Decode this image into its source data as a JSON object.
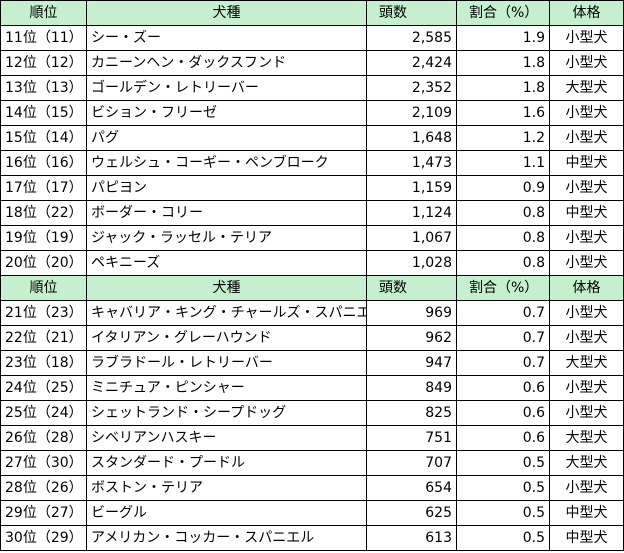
{
  "colors": {
    "header_bg": "#c6efce",
    "border": "#000000"
  },
  "header": {
    "rank": "順位",
    "breed": "犬種",
    "count": "頭数",
    "ratio": "割合（%）",
    "size": "体格"
  },
  "sections": [
    {
      "rows": [
        {
          "rank": "11位（11）",
          "breed": "シー・ズー",
          "count": "2,585",
          "ratio": "1.9",
          "size": "小型犬"
        },
        {
          "rank": "12位（12）",
          "breed": "カニーンヘン・ダックスフンド",
          "count": "2,424",
          "ratio": "1.8",
          "size": "小型犬"
        },
        {
          "rank": "13位（13）",
          "breed": "ゴールデン・レトリーバー",
          "count": "2,352",
          "ratio": "1.8",
          "size": "大型犬"
        },
        {
          "rank": "14位（15）",
          "breed": "ビション・フリーゼ",
          "count": "2,109",
          "ratio": "1.6",
          "size": "小型犬"
        },
        {
          "rank": "15位（14）",
          "breed": "パグ",
          "count": "1,648",
          "ratio": "1.2",
          "size": "小型犬"
        },
        {
          "rank": "16位（16）",
          "breed": "ウェルシュ・コーギー・ペンブローク",
          "count": "1,473",
          "ratio": "1.1",
          "size": "中型犬"
        },
        {
          "rank": "17位（17）",
          "breed": "パピヨン",
          "count": "1,159",
          "ratio": "0.9",
          "size": "小型犬"
        },
        {
          "rank": "18位（22）",
          "breed": "ボーダー・コリー",
          "count": "1,124",
          "ratio": "0.8",
          "size": "中型犬"
        },
        {
          "rank": "19位（19）",
          "breed": "ジャック・ラッセル・テリア",
          "count": "1,067",
          "ratio": "0.8",
          "size": "小型犬"
        },
        {
          "rank": "20位（20）",
          "breed": "ペキニーズ",
          "count": "1,028",
          "ratio": "0.8",
          "size": "小型犬"
        }
      ]
    },
    {
      "rows": [
        {
          "rank": "21位（23）",
          "breed": "キャバリア・キング・チャールズ・スパニエル",
          "count": "969",
          "ratio": "0.7",
          "size": "小型犬"
        },
        {
          "rank": "22位（21）",
          "breed": "イタリアン・グレーハウンド",
          "count": "962",
          "ratio": "0.7",
          "size": "小型犬"
        },
        {
          "rank": "23位（18）",
          "breed": "ラブラドール・レトリーバー",
          "count": "947",
          "ratio": "0.7",
          "size": "大型犬"
        },
        {
          "rank": "24位（25）",
          "breed": "ミニチュア・ピンシャー",
          "count": "849",
          "ratio": "0.6",
          "size": "小型犬"
        },
        {
          "rank": "25位（24）",
          "breed": "シェットランド・シープドッグ",
          "count": "825",
          "ratio": "0.6",
          "size": "小型犬"
        },
        {
          "rank": "26位（28）",
          "breed": "シベリアンハスキー",
          "count": "751",
          "ratio": "0.6",
          "size": "大型犬"
        },
        {
          "rank": "27位（30）",
          "breed": "スタンダード・プードル",
          "count": "707",
          "ratio": "0.5",
          "size": "大型犬"
        },
        {
          "rank": "28位（26）",
          "breed": "ボストン・テリア",
          "count": "654",
          "ratio": "0.5",
          "size": "小型犬"
        },
        {
          "rank": "29位（27）",
          "breed": "ビーグル",
          "count": "625",
          "ratio": "0.5",
          "size": "中型犬"
        },
        {
          "rank": "30位（29）",
          "breed": "アメリカン・コッカー・スパニエル",
          "count": "613",
          "ratio": "0.5",
          "size": "中型犬"
        }
      ]
    }
  ]
}
